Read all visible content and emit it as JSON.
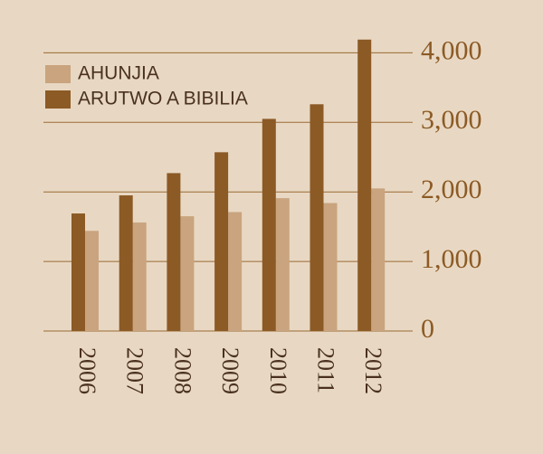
{
  "chart_data": {
    "type": "bar",
    "categories": [
      "2006",
      "2007",
      "2008",
      "2009",
      "2010",
      "2011",
      "2012"
    ],
    "series": [
      {
        "name": "AHUNJIA",
        "color": "#c9a47e",
        "values": [
          1440,
          1560,
          1650,
          1710,
          1910,
          1840,
          2050
        ]
      },
      {
        "name": "ARUTWO A BIBILIA",
        "color": "#8c5a25",
        "values": [
          1690,
          1950,
          2270,
          2570,
          3050,
          3260,
          4190
        ]
      }
    ],
    "ylim": [
      0,
      4200
    ],
    "yticks": [
      0,
      {
        "value": 1000,
        "label": "1,000"
      },
      {
        "value": 2000,
        "label": "2,000"
      },
      {
        "value": 3000,
        "label": "3,000"
      },
      {
        "value": 4000,
        "label": "4,000"
      }
    ],
    "grid": true
  }
}
